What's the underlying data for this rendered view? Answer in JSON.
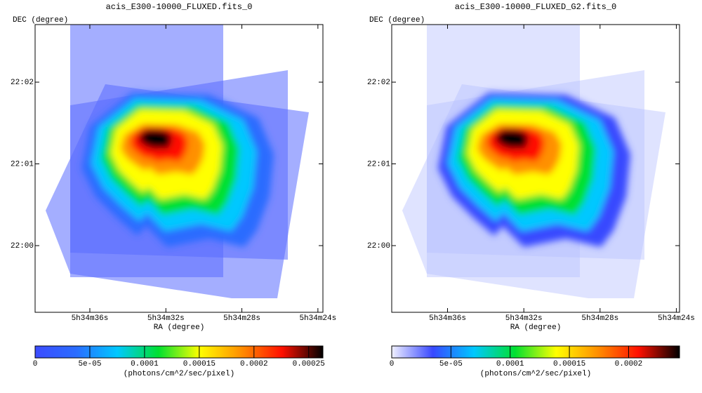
{
  "chart_data": [
    {
      "type": "image",
      "title": "acis_E300-10000_FLUXED.fits_0",
      "xlabel": "RA (degree)",
      "ylabel": "DEC (degree)",
      "xlim": [
        83.662,
        83.5989
      ],
      "ylim": [
        21.98641,
        22.04507
      ],
      "xticks": [
        {
          "value": 83.65,
          "label": "5h34m36s"
        },
        {
          "value": 83.63333,
          "label": "5h34m32s"
        },
        {
          "value": 83.61667,
          "label": "5h34m28s"
        },
        {
          "value": 83.6,
          "label": "5h34m24s"
        }
      ],
      "yticks": [
        {
          "value": 22.0,
          "label": "22:00"
        },
        {
          "value": 22.01667,
          "label": "22:01"
        },
        {
          "value": 22.03333,
          "label": "22:02"
        }
      ],
      "colormap": [
        "#3c4cff",
        "#2a6cff",
        "#00c8ff",
        "#00e030",
        "#ffff00",
        "#ff9000",
        "#ff1000",
        "#000000"
      ],
      "colorbar": {
        "label": "(photons/cm^2/sec/pixel)",
        "lim": [
          0,
          0.000263
        ],
        "ticks": [
          0,
          {
            "value": 5e-05,
            "label": "5e-05"
          },
          0.0001,
          0.00015,
          0.0002,
          0.00025
        ]
      }
    },
    {
      "type": "image",
      "title": "acis_E300-10000_FLUXED_G2.fits_0",
      "xlabel": "RA (degree)",
      "ylabel": "DEC (degree)",
      "xlim": [
        83.6622,
        83.5993
      ],
      "ylim": [
        21.98641,
        22.04507
      ],
      "xticks": [
        {
          "value": 83.65,
          "label": "5h34m36s"
        },
        {
          "value": 83.63333,
          "label": "5h34m32s"
        },
        {
          "value": 83.61667,
          "label": "5h34m28s"
        },
        {
          "value": 83.6,
          "label": "5h34m24s"
        }
      ],
      "yticks": [
        {
          "value": 22.0,
          "label": "22:00"
        },
        {
          "value": 22.01667,
          "label": "22:01"
        },
        {
          "value": 22.03333,
          "label": "22:02"
        }
      ],
      "colormap": [
        "#f0f0ff",
        "#3848ff",
        "#00c8ff",
        "#00e030",
        "#ffff00",
        "#ff9000",
        "#ff1000",
        "#000000"
      ],
      "colorbar": {
        "label": "(photons/cm^2/sec/pixel)",
        "lim": [
          0,
          0.000243
        ],
        "ticks": [
          0,
          {
            "value": 5e-05,
            "label": "5e-05"
          },
          0.0001,
          0.00015,
          0.0002
        ]
      }
    }
  ]
}
